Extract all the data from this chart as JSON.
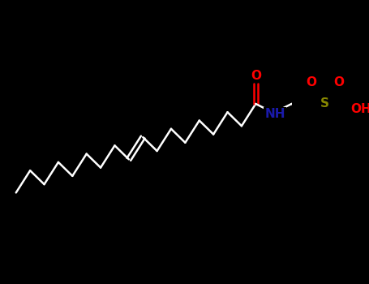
{
  "bg_color": "#000000",
  "bond_color": "#ffffff",
  "bond_width": 1.8,
  "atom_colors": {
    "O": "#ff0000",
    "N": "#1a1aaa",
    "S": "#888800",
    "C": "#ffffff"
  },
  "figsize": [
    4.55,
    3.5
  ],
  "dpi": 100,
  "xlim": [
    0,
    455
  ],
  "ylim": [
    0,
    350
  ]
}
